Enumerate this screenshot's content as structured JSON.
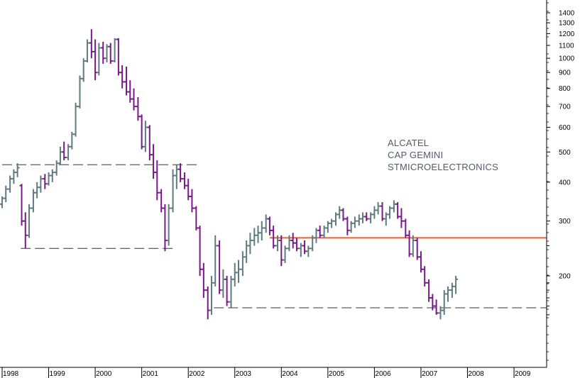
{
  "chart_data": {
    "type": "ohlc",
    "scale": "log",
    "y_ticks": [
      200,
      300,
      400,
      500,
      600,
      700,
      800,
      900,
      1000,
      1100,
      1200,
      1300,
      1400
    ],
    "x_ticks": [
      "1998",
      "1999",
      "2000",
      "2001",
      "2002",
      "2003",
      "2004",
      "2005",
      "2006",
      "2007",
      "2008",
      "2009"
    ],
    "legend": [
      "ALCATEL",
      "CAP GEMINI",
      "STMICROELECTRONICS"
    ],
    "colors": {
      "up": "#5f7a80",
      "down": "#7a1a8a",
      "resistance": "#e8602c",
      "dashed": "#333333",
      "axis": "#000000"
    },
    "reference_lines": [
      {
        "kind": "horizontal-solid",
        "value": 265,
        "from": "2003.75",
        "to": "end"
      },
      {
        "kind": "horizontal-dashed",
        "value": 455,
        "from": "1998.0",
        "to": "2002.25"
      },
      {
        "kind": "horizontal-dashed",
        "value": 245,
        "from": "1998.4",
        "to": "2001.75"
      },
      {
        "kind": "horizontal-dashed",
        "value": 158,
        "from": "2002.55",
        "to": "end"
      }
    ],
    "series": [
      [
        1998.0,
        340,
        360,
        330,
        355
      ],
      [
        1998.08,
        355,
        390,
        345,
        380
      ],
      [
        1998.17,
        380,
        420,
        370,
        410
      ],
      [
        1998.25,
        410,
        440,
        395,
        430
      ],
      [
        1998.33,
        430,
        460,
        415,
        445
      ],
      [
        1998.42,
        390,
        395,
        290,
        300
      ],
      [
        1998.5,
        300,
        320,
        245,
        270
      ],
      [
        1998.58,
        270,
        340,
        265,
        330
      ],
      [
        1998.67,
        330,
        380,
        320,
        370
      ],
      [
        1998.75,
        370,
        400,
        355,
        385
      ],
      [
        1998.83,
        385,
        420,
        370,
        410
      ],
      [
        1998.92,
        410,
        425,
        380,
        395
      ],
      [
        1999.0,
        395,
        430,
        390,
        420
      ],
      [
        1999.08,
        420,
        440,
        400,
        430
      ],
      [
        1999.17,
        430,
        470,
        420,
        460
      ],
      [
        1999.25,
        460,
        520,
        455,
        500
      ],
      [
        1999.33,
        500,
        540,
        470,
        480
      ],
      [
        1999.42,
        480,
        530,
        470,
        520
      ],
      [
        1999.5,
        520,
        580,
        510,
        570
      ],
      [
        1999.58,
        570,
        720,
        560,
        700
      ],
      [
        1999.67,
        700,
        880,
        690,
        860
      ],
      [
        1999.75,
        860,
        1000,
        840,
        980
      ],
      [
        1999.83,
        980,
        1150,
        970,
        1120
      ],
      [
        1999.92,
        1120,
        1240,
        1000,
        1050
      ],
      [
        2000.0,
        1050,
        1150,
        850,
        900
      ],
      [
        2000.08,
        900,
        1120,
        880,
        1080
      ],
      [
        2000.17,
        1080,
        1130,
        960,
        1000
      ],
      [
        2000.25,
        1000,
        1110,
        970,
        1090
      ],
      [
        2000.33,
        1090,
        1120,
        960,
        980
      ],
      [
        2000.42,
        980,
        1160,
        970,
        1150
      ],
      [
        2000.5,
        1150,
        1160,
        880,
        900
      ],
      [
        2000.58,
        900,
        950,
        800,
        840
      ],
      [
        2000.67,
        840,
        940,
        760,
        780
      ],
      [
        2000.75,
        780,
        850,
        720,
        740
      ],
      [
        2000.83,
        740,
        800,
        680,
        700
      ],
      [
        2000.92,
        700,
        750,
        630,
        650
      ],
      [
        2001.0,
        650,
        660,
        510,
        520
      ],
      [
        2001.08,
        520,
        630,
        500,
        600
      ],
      [
        2001.17,
        600,
        610,
        470,
        490
      ],
      [
        2001.25,
        490,
        530,
        410,
        430
      ],
      [
        2001.33,
        430,
        470,
        350,
        370
      ],
      [
        2001.42,
        370,
        380,
        320,
        330
      ],
      [
        2001.5,
        330,
        340,
        240,
        260
      ],
      [
        2001.58,
        260,
        340,
        250,
        330
      ],
      [
        2001.67,
        330,
        440,
        320,
        420
      ],
      [
        2001.75,
        420,
        455,
        380,
        440
      ],
      [
        2001.83,
        440,
        460,
        400,
        410
      ],
      [
        2001.92,
        410,
        430,
        380,
        390
      ],
      [
        2002.0,
        390,
        410,
        350,
        360
      ],
      [
        2002.08,
        360,
        380,
        320,
        330
      ],
      [
        2002.17,
        330,
        335,
        280,
        285
      ],
      [
        2002.25,
        285,
        290,
        200,
        210
      ],
      [
        2002.33,
        210,
        220,
        170,
        180
      ],
      [
        2002.42,
        180,
        185,
        145,
        155
      ],
      [
        2002.5,
        155,
        200,
        150,
        190
      ],
      [
        2002.58,
        190,
        270,
        185,
        250
      ],
      [
        2002.67,
        250,
        260,
        175,
        180
      ],
      [
        2002.75,
        180,
        210,
        170,
        195
      ],
      [
        2002.83,
        195,
        200,
        160,
        165
      ],
      [
        2002.92,
        165,
        200,
        158,
        195
      ],
      [
        2003.0,
        195,
        220,
        185,
        205
      ],
      [
        2003.08,
        205,
        225,
        190,
        210
      ],
      [
        2003.17,
        210,
        240,
        200,
        230
      ],
      [
        2003.25,
        230,
        260,
        220,
        250
      ],
      [
        2003.33,
        250,
        275,
        235,
        260
      ],
      [
        2003.42,
        260,
        285,
        250,
        270
      ],
      [
        2003.5,
        270,
        290,
        255,
        275
      ],
      [
        2003.58,
        275,
        300,
        260,
        285
      ],
      [
        2003.67,
        285,
        315,
        275,
        305
      ],
      [
        2003.75,
        305,
        310,
        270,
        280
      ],
      [
        2003.83,
        280,
        290,
        245,
        250
      ],
      [
        2003.92,
        250,
        270,
        240,
        260
      ],
      [
        2004.0,
        260,
        270,
        215,
        225
      ],
      [
        2004.08,
        225,
        250,
        220,
        245
      ],
      [
        2004.17,
        245,
        270,
        240,
        260
      ],
      [
        2004.25,
        260,
        275,
        245,
        255
      ],
      [
        2004.33,
        255,
        265,
        240,
        245
      ],
      [
        2004.42,
        245,
        255,
        230,
        250
      ],
      [
        2004.5,
        250,
        260,
        235,
        240
      ],
      [
        2004.58,
        240,
        250,
        230,
        245
      ],
      [
        2004.67,
        245,
        270,
        240,
        265
      ],
      [
        2004.75,
        265,
        285,
        255,
        280
      ],
      [
        2004.83,
        280,
        290,
        265,
        270
      ],
      [
        2004.92,
        270,
        290,
        265,
        285
      ],
      [
        2005.0,
        285,
        300,
        275,
        295
      ],
      [
        2005.08,
        295,
        305,
        285,
        300
      ],
      [
        2005.17,
        300,
        320,
        290,
        315
      ],
      [
        2005.25,
        315,
        335,
        305,
        325
      ],
      [
        2005.33,
        325,
        330,
        300,
        305
      ],
      [
        2005.42,
        305,
        310,
        270,
        280
      ],
      [
        2005.5,
        280,
        300,
        275,
        295
      ],
      [
        2005.58,
        295,
        310,
        285,
        300
      ],
      [
        2005.67,
        300,
        315,
        290,
        305
      ],
      [
        2005.75,
        305,
        320,
        295,
        310
      ],
      [
        2005.83,
        310,
        320,
        300,
        305
      ],
      [
        2005.92,
        305,
        320,
        295,
        315
      ],
      [
        2006.0,
        315,
        335,
        305,
        325
      ],
      [
        2006.08,
        325,
        345,
        315,
        335
      ],
      [
        2006.17,
        335,
        345,
        300,
        305
      ],
      [
        2006.25,
        305,
        320,
        290,
        315
      ],
      [
        2006.33,
        315,
        335,
        305,
        330
      ],
      [
        2006.42,
        330,
        350,
        320,
        340
      ],
      [
        2006.5,
        340,
        345,
        305,
        310
      ],
      [
        2006.58,
        310,
        330,
        285,
        300
      ],
      [
        2006.67,
        300,
        305,
        265,
        270
      ],
      [
        2006.75,
        270,
        280,
        230,
        235
      ],
      [
        2006.83,
        235,
        270,
        230,
        260
      ],
      [
        2006.92,
        260,
        265,
        225,
        230
      ],
      [
        2007.0,
        230,
        240,
        205,
        210
      ],
      [
        2007.08,
        210,
        215,
        185,
        190
      ],
      [
        2007.17,
        190,
        195,
        165,
        170
      ],
      [
        2007.25,
        170,
        175,
        155,
        160
      ],
      [
        2007.33,
        160,
        168,
        150,
        152
      ],
      [
        2007.42,
        152,
        160,
        145,
        155
      ],
      [
        2007.5,
        155,
        180,
        150,
        175
      ],
      [
        2007.58,
        175,
        185,
        165,
        180
      ],
      [
        2007.67,
        180,
        190,
        170,
        185
      ],
      [
        2007.75,
        185,
        200,
        175,
        195
      ]
    ]
  }
}
